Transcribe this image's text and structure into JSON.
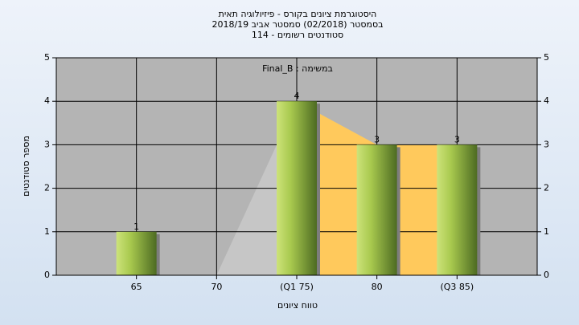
{
  "chart_data": {
    "type": "bar",
    "title": "היסטוגרמת ציונים בקורס - פיזיולוגיה תאית",
    "subtitle": "בסמסטר  (02/2018)  סמסטר אביב 2018/19",
    "subtitle2": "סטודנטים רשומים - 114",
    "annotation": "Final_B : במשימה",
    "x_label": "טווח ציונים",
    "y_label": "מספר סטודנטים",
    "categories": [
      "65",
      "70",
      "(Q1 75)",
      "80",
      "(Q3 85)"
    ],
    "values": [
      1,
      0,
      4,
      3,
      3
    ],
    "color": "#9cc040",
    "area_colors": [
      "#c6c6c6",
      "#ffc95c"
    ],
    "plot_background": "#b4b4b4",
    "ylim": [
      0,
      5
    ],
    "yticks": [
      0,
      1,
      2,
      3,
      4,
      5
    ],
    "grid": true
  }
}
